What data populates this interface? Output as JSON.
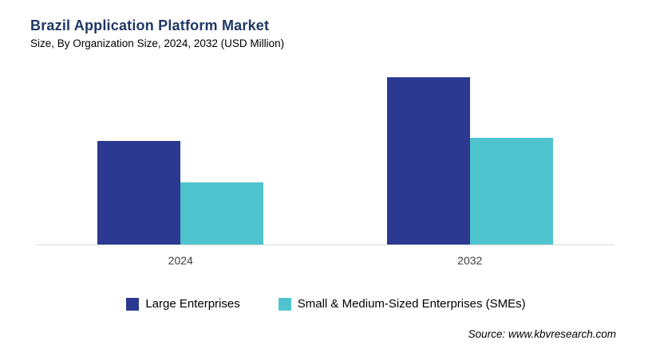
{
  "title": "Brazil Application Platform Market",
  "subtitle": "Size, By Organization Size, 2024, 2032 (USD Million)",
  "source": "Source: www.kbvresearch.com",
  "chart_data": {
    "type": "bar",
    "title": "Brazil Application Platform Market",
    "subtitle": "Size, By Organization Size, 2024, 2032 (USD Million)",
    "categories": [
      "2024",
      "2032"
    ],
    "series": [
      {
        "name": "Large Enterprises",
        "color": "#2b3990",
        "values": [
          62,
          100
        ]
      },
      {
        "name": "Small & Medium-Sized Enterprises (SMEs)",
        "color": "#4fc4cf",
        "values": [
          37,
          64
        ]
      }
    ],
    "xlabel": "",
    "ylabel": "",
    "value_units": "relative (no value axis shown)",
    "ylim": [
      0,
      100
    ],
    "grid": false,
    "legend_position": "bottom"
  }
}
